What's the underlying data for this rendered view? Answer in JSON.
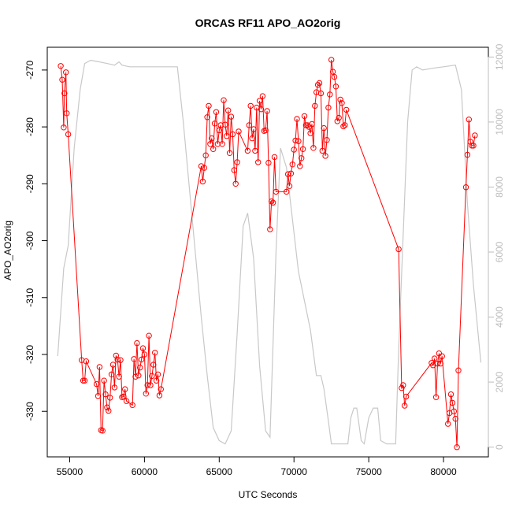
{
  "chart_data": {
    "type": "line",
    "title": "ORCAS RF11 APO_AO2orig",
    "xlabel": "UTC Seconds",
    "ylabel": "APO_AO2orig",
    "xlim": [
      53500,
      83000
    ],
    "ylim": [
      -338,
      -266
    ],
    "y2lim": [
      -300,
      12300
    ],
    "x_ticks": [
      55000,
      60000,
      65000,
      70000,
      75000,
      80000
    ],
    "y_ticks": [
      -330,
      -320,
      -310,
      -300,
      -290,
      -280,
      -270
    ],
    "y2_ticks": [
      0,
      2000,
      4000,
      6000,
      8000,
      10000,
      12000
    ],
    "series": [
      {
        "role": "primary",
        "color": "#ff0000",
        "marker": "open-circle",
        "points": [
          [
            54400,
            -269.3
          ],
          [
            54500,
            -271.7
          ],
          [
            54600,
            -280.1
          ],
          [
            54650,
            -274.1
          ],
          [
            54750,
            -270.4
          ],
          [
            54800,
            -277.6
          ],
          [
            54900,
            -281.3
          ],
          [
            55800,
            -321.0
          ],
          [
            55900,
            -324.6
          ],
          [
            56000,
            -324.6
          ],
          [
            56100,
            -321.2
          ],
          [
            56800,
            -325.2
          ],
          [
            56900,
            -327.3
          ],
          [
            57000,
            -322.2
          ],
          [
            57100,
            -333.3
          ],
          [
            57200,
            -333.4
          ],
          [
            57300,
            -324.6
          ],
          [
            57400,
            -327.0
          ],
          [
            57500,
            -329.3
          ],
          [
            57600,
            -329.9
          ],
          [
            57700,
            -327.6
          ],
          [
            57800,
            -323.5
          ],
          [
            57900,
            -321.8
          ],
          [
            58000,
            -325.8
          ],
          [
            58100,
            -320.2
          ],
          [
            58200,
            -320.9
          ],
          [
            58300,
            -323.9
          ],
          [
            58400,
            -321.0
          ],
          [
            58500,
            -327.5
          ],
          [
            58600,
            -327.4
          ],
          [
            58700,
            -326.1
          ],
          [
            58800,
            -328.2
          ],
          [
            59200,
            -328.9
          ],
          [
            59300,
            -320.8
          ],
          [
            59400,
            -323.9
          ],
          [
            59500,
            -318.0
          ],
          [
            59600,
            -323.7
          ],
          [
            59700,
            -322.3
          ],
          [
            59800,
            -320.9
          ],
          [
            59900,
            -318.9
          ],
          [
            60000,
            -320.0
          ],
          [
            60100,
            -326.9
          ],
          [
            60200,
            -325.4
          ],
          [
            60300,
            -316.7
          ],
          [
            60400,
            -325.4
          ],
          [
            60500,
            -323.8
          ],
          [
            60600,
            -321.8
          ],
          [
            60700,
            -319.7
          ],
          [
            60800,
            -324.6
          ],
          [
            60900,
            -323.5
          ],
          [
            61000,
            -327.2
          ],
          [
            61100,
            -326.1
          ],
          [
            63800,
            -286.9
          ],
          [
            63900,
            -289.6
          ],
          [
            64000,
            -287.2
          ],
          [
            64100,
            -285.0
          ],
          [
            64200,
            -278.3
          ],
          [
            64300,
            -276.3
          ],
          [
            64400,
            -283.0
          ],
          [
            64500,
            -282.0
          ],
          [
            64600,
            -283.9
          ],
          [
            64700,
            -279.4
          ],
          [
            64800,
            -277.4
          ],
          [
            64900,
            -283.0
          ],
          [
            65000,
            -280.6
          ],
          [
            65100,
            -279.7
          ],
          [
            65200,
            -283.0
          ],
          [
            65300,
            -275.3
          ],
          [
            65400,
            -279.6
          ],
          [
            65500,
            -281.6
          ],
          [
            65600,
            -277.1
          ],
          [
            65700,
            -284.6
          ],
          [
            65800,
            -278.2
          ],
          [
            65900,
            -281.3
          ],
          [
            66000,
            -287.6
          ],
          [
            66100,
            -290.0
          ],
          [
            66200,
            -286.2
          ],
          [
            66300,
            -280.8
          ],
          [
            66900,
            -284.2
          ],
          [
            67000,
            -279.7
          ],
          [
            67100,
            -276.3
          ],
          [
            67200,
            -282.0
          ],
          [
            67300,
            -280.4
          ],
          [
            67400,
            -284.2
          ],
          [
            67500,
            -276.6
          ],
          [
            67600,
            -286.2
          ],
          [
            67700,
            -275.4
          ],
          [
            67800,
            -276.9
          ],
          [
            67900,
            -274.6
          ],
          [
            68000,
            -280.7
          ],
          [
            68100,
            -280.6
          ],
          [
            68200,
            -277.2
          ],
          [
            68300,
            -286.3
          ],
          [
            68400,
            -298.0
          ],
          [
            68500,
            -293.1
          ],
          [
            68600,
            -293.3
          ],
          [
            68700,
            -285.3
          ],
          [
            68800,
            -291.4
          ],
          [
            69500,
            -291.4
          ],
          [
            69600,
            -288.3
          ],
          [
            69700,
            -290.4
          ],
          [
            69800,
            -288.2
          ],
          [
            69900,
            -286.6
          ],
          [
            70000,
            -284.0
          ],
          [
            70100,
            -282.4
          ],
          [
            70200,
            -278.6
          ],
          [
            70300,
            -282.5
          ],
          [
            70400,
            -286.9
          ],
          [
            70500,
            -285.5
          ],
          [
            70600,
            -283.9
          ],
          [
            70700,
            -278.1
          ],
          [
            70800,
            -279.7
          ],
          [
            70900,
            -279.7
          ],
          [
            71000,
            -280.0
          ],
          [
            71100,
            -281.1
          ],
          [
            71200,
            -279.5
          ],
          [
            71300,
            -283.7
          ],
          [
            71400,
            -276.3
          ],
          [
            71500,
            -273.9
          ],
          [
            71600,
            -272.6
          ],
          [
            71700,
            -272.3
          ],
          [
            71800,
            -274.1
          ],
          [
            71900,
            -284.2
          ],
          [
            72000,
            -280.2
          ],
          [
            72100,
            -285.1
          ],
          [
            72200,
            -282.3
          ],
          [
            72300,
            -276.6
          ],
          [
            72400,
            -274.3
          ],
          [
            72500,
            -268.2
          ],
          [
            72600,
            -270.3
          ],
          [
            72700,
            -271.2
          ],
          [
            72800,
            -272.9
          ],
          [
            72900,
            -279.0
          ],
          [
            73000,
            -278.4
          ],
          [
            73100,
            -275.2
          ],
          [
            73200,
            -275.8
          ],
          [
            73300,
            -279.9
          ],
          [
            73400,
            -279.7
          ],
          [
            73500,
            -277.0
          ],
          [
            77000,
            -301.5
          ],
          [
            77200,
            -325.9
          ],
          [
            77300,
            -325.4
          ],
          [
            77400,
            -329.0
          ],
          [
            77500,
            -327.4
          ],
          [
            79200,
            -321.5
          ],
          [
            79300,
            -321.9
          ],
          [
            79400,
            -320.7
          ],
          [
            79500,
            -327.5
          ],
          [
            79600,
            -321.6
          ],
          [
            79700,
            -319.8
          ],
          [
            79800,
            -321.6
          ],
          [
            79900,
            -320.3
          ],
          [
            80300,
            -332.2
          ],
          [
            80400,
            -330.3
          ],
          [
            80500,
            -327.0
          ],
          [
            80600,
            -328.5
          ],
          [
            80700,
            -330.0
          ],
          [
            80800,
            -331.3
          ],
          [
            80900,
            -336.3
          ],
          [
            81000,
            -322.8
          ],
          [
            81500,
            -290.6
          ],
          [
            81600,
            -284.9
          ],
          [
            81700,
            -278.7
          ],
          [
            81800,
            -282.6
          ],
          [
            81900,
            -283.3
          ],
          [
            82000,
            -283.3
          ],
          [
            82100,
            -281.5
          ]
        ]
      },
      {
        "role": "secondary",
        "color": "#c8c8c8",
        "axis": "right",
        "points": [
          [
            54200,
            2800
          ],
          [
            54600,
            5500
          ],
          [
            54900,
            6200
          ],
          [
            55300,
            9200
          ],
          [
            55700,
            11000
          ],
          [
            56000,
            11800
          ],
          [
            56400,
            11900
          ],
          [
            57000,
            11850
          ],
          [
            57500,
            11800
          ],
          [
            58000,
            11750
          ],
          [
            58300,
            11850
          ],
          [
            58500,
            11750
          ],
          [
            59000,
            11700
          ],
          [
            60000,
            11700
          ],
          [
            61000,
            11700
          ],
          [
            62200,
            11700
          ],
          [
            62600,
            10000
          ],
          [
            63000,
            8000
          ],
          [
            63400,
            6000
          ],
          [
            63800,
            4000
          ],
          [
            64200,
            2200
          ],
          [
            64600,
            600
          ],
          [
            65000,
            200
          ],
          [
            65400,
            100
          ],
          [
            65800,
            500
          ],
          [
            66200,
            3500
          ],
          [
            66600,
            6800
          ],
          [
            66900,
            7200
          ],
          [
            67300,
            5800
          ],
          [
            67700,
            2500
          ],
          [
            68100,
            500
          ],
          [
            68400,
            300
          ],
          [
            68800,
            6000
          ],
          [
            69100,
            9200
          ],
          [
            69500,
            8600
          ],
          [
            69900,
            7000
          ],
          [
            70300,
            5400
          ],
          [
            70700,
            4500
          ],
          [
            71100,
            3600
          ],
          [
            71500,
            2200
          ],
          [
            71800,
            2200
          ],
          [
            72000,
            1800
          ],
          [
            72300,
            800
          ],
          [
            72500,
            100
          ],
          [
            73000,
            100
          ],
          [
            73600,
            100
          ],
          [
            73800,
            900
          ],
          [
            74000,
            1200
          ],
          [
            74200,
            1200
          ],
          [
            74500,
            200
          ],
          [
            74700,
            100
          ],
          [
            75000,
            900
          ],
          [
            75300,
            1200
          ],
          [
            75600,
            1200
          ],
          [
            75800,
            200
          ],
          [
            76200,
            100
          ],
          [
            76800,
            100
          ],
          [
            77000,
            3000
          ],
          [
            77300,
            6500
          ],
          [
            77600,
            10000
          ],
          [
            77900,
            11600
          ],
          [
            78200,
            11700
          ],
          [
            78600,
            11600
          ],
          [
            79200,
            11650
          ],
          [
            80000,
            11700
          ],
          [
            80800,
            11750
          ],
          [
            81200,
            11000
          ],
          [
            81600,
            7500
          ],
          [
            82000,
            5000
          ],
          [
            82500,
            2600
          ]
        ]
      }
    ]
  }
}
